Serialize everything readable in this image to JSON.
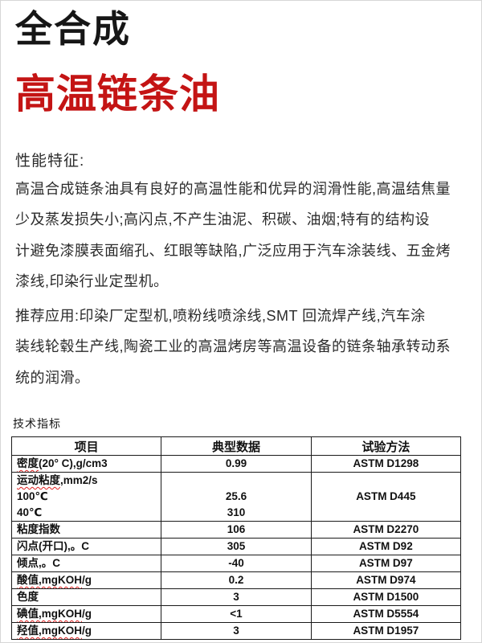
{
  "colors": {
    "product_title_red": "#c41414",
    "spellcheck_underline": "#e02020"
  },
  "header": {
    "series_title": "全合成",
    "product_title": "高温链条油"
  },
  "performance": {
    "heading": "性能特征:",
    "lines": [
      "高温合成链条油具有良好的高温性能和优异的润滑性能,高温结焦量",
      "少及蒸发损失小;高闪点,不产生油泥、积碳、油烟;特有的结构设",
      "计避免漆膜表面缩孔、红眼等缺陷,广泛应用于汽车涂装线、五金烤",
      "漆线,印染行业定型机。"
    ]
  },
  "application": {
    "lines": [
      "推荐应用:印染厂定型机,喷粉线喷涂线,SMT 回流焊产线,汽车涂",
      "装线轮毂生产线,陶瓷工业的高温烤房等高温设备的链条轴承转动系",
      "统的润滑。"
    ]
  },
  "spec_table": {
    "heading": "技术指标",
    "headers": [
      "项目",
      "典型数据",
      "试验方法"
    ],
    "rows": [
      {
        "item": [
          [
            "密度",
            true
          ],
          [
            "(20° C),g/cm3",
            false
          ]
        ],
        "value": "0.99",
        "method": "ASTM D1298"
      },
      {
        "item_lines": [
          [
            [
              "运动粘度",
              true
            ],
            [
              ",mm2/s",
              false
            ]
          ],
          [
            [
              "100℃",
              false
            ]
          ],
          [
            [
              "40℃",
              false
            ]
          ]
        ],
        "value_lines": [
          "",
          "25.6",
          "310"
        ],
        "method": "ASTM D445"
      },
      {
        "item": [
          [
            "粘度指数",
            false
          ]
        ],
        "value": "106",
        "method": "ASTM D2270"
      },
      {
        "item": [
          [
            "闪点(开口),。C",
            false
          ]
        ],
        "value": "305",
        "method": "ASTM D92"
      },
      {
        "item": [
          [
            "倾点,。C",
            false
          ]
        ],
        "value": "-40",
        "method": "ASTM D97"
      },
      {
        "item": [
          [
            "酸值,mgKOH",
            true
          ],
          [
            "/g",
            false
          ]
        ],
        "value": "0.2",
        "method": "ASTM D974"
      },
      {
        "item": [
          [
            "色度",
            false
          ]
        ],
        "value": "3",
        "method": "ASTM D1500"
      },
      {
        "item": [
          [
            "碘值,mgKOH",
            true
          ],
          [
            "/g",
            false
          ]
        ],
        "value": "<1",
        "method": "ASTM D5554"
      },
      {
        "item": [
          [
            "羟值,mgKOH",
            true
          ],
          [
            "/g",
            false
          ]
        ],
        "value": "3",
        "method": "ASTM D1957"
      }
    ]
  }
}
